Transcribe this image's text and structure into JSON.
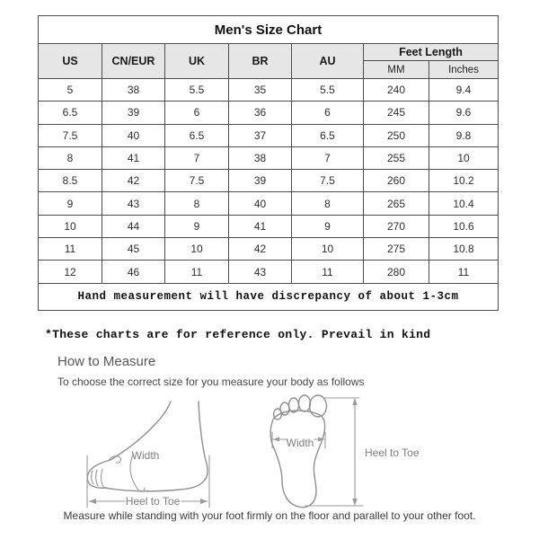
{
  "table": {
    "title": "Men's Size Chart",
    "columns": [
      "US",
      "CN/EUR",
      "UK",
      "BR",
      "AU"
    ],
    "feet_length": {
      "label": "Feet Length",
      "sub": [
        "MM",
        "Inches"
      ]
    },
    "rows": [
      [
        "5",
        "38",
        "5.5",
        "35",
        "5.5",
        "240",
        "9.4"
      ],
      [
        "6.5",
        "39",
        "6",
        "36",
        "6",
        "245",
        "9.6"
      ],
      [
        "7.5",
        "40",
        "6.5",
        "37",
        "6.5",
        "250",
        "9.8"
      ],
      [
        "8",
        "41",
        "7",
        "38",
        "7",
        "255",
        "10"
      ],
      [
        "8.5",
        "42",
        "7.5",
        "39",
        "7.5",
        "260",
        "10.2"
      ],
      [
        "9",
        "43",
        "8",
        "40",
        "8",
        "265",
        "10.4"
      ],
      [
        "10",
        "44",
        "9",
        "41",
        "9",
        "270",
        "10.6"
      ],
      [
        "11",
        "45",
        "10",
        "42",
        "10",
        "275",
        "10.8"
      ],
      [
        "12",
        "46",
        "11",
        "43",
        "11",
        "280",
        "11"
      ]
    ],
    "note": "Hand measurement will have discrepancy of about 1-3cm"
  },
  "reference_note": "*These charts are for reference only. Prevail in kind",
  "measure": {
    "heading": "How to Measure",
    "subtitle": "To choose the correct size for you measure your body as follows",
    "side_foot": {
      "width_label": "Width",
      "heel_to_toe_label": "Heel to Toe"
    },
    "footprint": {
      "width_label": "Width",
      "heel_to_toe_label": "Heel to Toe"
    },
    "caption": "Measure while standing with your foot firmly on the floor and parallel to your other foot."
  },
  "colors": {
    "header_bg": "#e6e6e6",
    "border": "#4d4d4d",
    "diagram_stroke": "#8f8f8f"
  }
}
